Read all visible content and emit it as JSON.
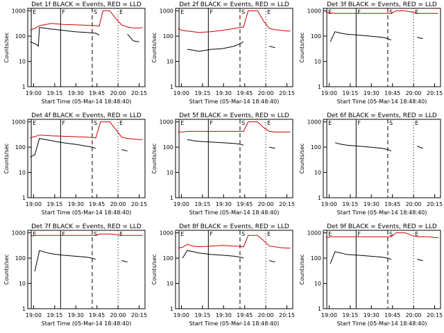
{
  "chart_data": [
    {
      "type": "line",
      "title": "Det 1f BLACK = Events, RED = LLD",
      "xlabel": "Start Time (05-Mar-14 18:48:40)",
      "ylabel": "Counts/sec",
      "xticks": [
        "19:00",
        "19:15",
        "19:30",
        "19:45",
        "20:00",
        "20:15"
      ],
      "yticks": [
        "1",
        "10",
        "100",
        "1000"
      ],
      "markers": [
        {
          "label": "E",
          "x": 0.03
        },
        {
          "label": "F",
          "x": 0.28
        },
        {
          "label": "S",
          "x": 0.55
        },
        {
          "label": "E",
          "x": 0.77
        }
      ],
      "red_baseline": 150,
      "x": [
        0.02,
        0.04,
        0.06,
        0.08,
        0.09,
        0.1,
        0.2,
        0.3,
        0.4,
        0.5,
        0.58,
        0.61,
        0.64,
        0.66,
        0.7,
        0.75,
        0.8,
        0.85,
        0.9,
        0.95,
        0.98
      ],
      "series": [
        {
          "name": "Events",
          "color": "#000000",
          "values": [
            60,
            55,
            50,
            45,
            40,
            220,
            190,
            170,
            150,
            140,
            130,
            110,
            null,
            null,
            null,
            null,
            null,
            120,
            65,
            60,
            null
          ]
        },
        {
          "name": "LLD",
          "color": "#cc0000",
          "values": [
            170,
            190,
            200,
            230,
            240,
            260,
            320,
            290,
            280,
            270,
            260,
            250,
            1000,
            1000,
            1000,
            500,
            280,
            230,
            210,
            210,
            220
          ]
        }
      ]
    },
    {
      "type": "line",
      "title": "Det 2f BLACK = Events, RED = LLD",
      "xlabel": "Start Time (05-Mar-14 18:48:40)",
      "ylabel": "Counts/sec",
      "xticks": [
        "19:00",
        "19:15",
        "19:30",
        "19:45",
        "20:00",
        "20:15"
      ],
      "yticks": [
        "1",
        "10",
        "100",
        "1000"
      ],
      "markers": [
        {
          "label": "E",
          "x": 0.03
        },
        {
          "label": "F",
          "x": 0.28
        },
        {
          "label": "S",
          "x": 0.55
        },
        {
          "label": "E",
          "x": 0.77
        }
      ],
      "red_baseline": 180,
      "x": [
        0.02,
        0.04,
        0.06,
        0.1,
        0.15,
        0.2,
        0.3,
        0.4,
        0.5,
        0.55,
        0.58,
        0.62,
        0.66,
        0.7,
        0.75,
        0.8,
        0.85,
        0.9,
        0.95,
        0.98
      ],
      "series": [
        {
          "name": "Events",
          "color": "#000000",
          "values": [
            null,
            null,
            null,
            30,
            28,
            25,
            30,
            32,
            40,
            50,
            60,
            null,
            null,
            null,
            null,
            40,
            35,
            null,
            null,
            null
          ]
        },
        {
          "name": "LLD",
          "color": "#cc0000",
          "values": [
            200,
            180,
            170,
            160,
            150,
            140,
            150,
            170,
            200,
            220,
            230,
            1000,
            1000,
            1000,
            400,
            200,
            180,
            170,
            160,
            160
          ]
        }
      ]
    },
    {
      "type": "line",
      "title": "Det 3f BLACK = Events, RED = LLD",
      "xlabel": "Start Time (05-Mar-14 18:48:40)",
      "ylabel": "Counts/sec",
      "xticks": [
        "19:00",
        "19:15",
        "19:30",
        "19:45",
        "20:00",
        "20:15"
      ],
      "yticks": [
        "1",
        "10",
        "100",
        "1000"
      ],
      "markers": [
        {
          "label": "E",
          "x": 0.03
        },
        {
          "label": "F",
          "x": 0.28
        },
        {
          "label": "S",
          "x": 0.55
        },
        {
          "label": "E",
          "x": 0.77
        }
      ],
      "red_baseline": 800,
      "x": [
        0.02,
        0.04,
        0.06,
        0.1,
        0.15,
        0.2,
        0.3,
        0.4,
        0.5,
        0.55,
        0.58,
        0.62,
        0.66,
        0.7,
        0.75,
        0.8,
        0.85,
        0.9,
        0.95,
        0.98
      ],
      "series": [
        {
          "name": "Events",
          "color": "#000000",
          "values": [
            null,
            null,
            60,
            150,
            130,
            120,
            110,
            100,
            90,
            80,
            70,
            null,
            null,
            null,
            null,
            90,
            80,
            null,
            null,
            null
          ]
        },
        {
          "name": "LLD",
          "color": "#cc0000",
          "values": [
            900,
            850,
            820,
            800,
            800,
            800,
            800,
            800,
            800,
            800,
            800,
            1000,
            1000,
            1000,
            900,
            800,
            800,
            800,
            800,
            800
          ]
        }
      ]
    },
    {
      "type": "line",
      "title": "Det 4f BLACK = Events, RED = LLD",
      "xlabel": "Start Time (05-Mar-14 18:48:40)",
      "ylabel": "Counts/sec",
      "xticks": [
        "19:00",
        "19:15",
        "19:30",
        "19:45",
        "20:00",
        "20:15"
      ],
      "yticks": [
        "1",
        "10",
        "100",
        "1000"
      ],
      "markers": [
        {
          "label": "E",
          "x": 0.03
        },
        {
          "label": "F",
          "x": 0.28
        },
        {
          "label": "S",
          "x": 0.55
        },
        {
          "label": "E",
          "x": 0.77
        }
      ],
      "red_baseline": 200,
      "x": [
        0.02,
        0.04,
        0.06,
        0.1,
        0.15,
        0.2,
        0.3,
        0.4,
        0.5,
        0.55,
        0.58,
        0.62,
        0.66,
        0.7,
        0.75,
        0.8,
        0.85,
        0.9,
        0.95,
        0.98
      ],
      "series": [
        {
          "name": "Events",
          "color": "#000000",
          "values": [
            40,
            45,
            50,
            220,
            200,
            180,
            150,
            130,
            110,
            100,
            90,
            null,
            null,
            null,
            null,
            80,
            70,
            null,
            null,
            null
          ]
        },
        {
          "name": "LLD",
          "color": "#cc0000",
          "values": [
            230,
            250,
            260,
            300,
            290,
            280,
            270,
            260,
            250,
            240,
            230,
            1000,
            1000,
            1000,
            500,
            250,
            220,
            210,
            200,
            200
          ]
        }
      ]
    },
    {
      "type": "line",
      "title": "Det 5f BLACK = Events, RED = LLD",
      "xlabel": "Start Time (05-Mar-14 18:48:40)",
      "ylabel": "Counts/sec",
      "xticks": [
        "19:00",
        "19:15",
        "19:30",
        "19:45",
        "20:00",
        "20:15"
      ],
      "yticks": [
        "1",
        "10",
        "100",
        "1000"
      ],
      "markers": [
        {
          "label": "E",
          "x": 0.03
        },
        {
          "label": "F",
          "x": 0.28
        },
        {
          "label": "S",
          "x": 0.55
        },
        {
          "label": "E",
          "x": 0.77
        }
      ],
      "red_baseline": 400,
      "x": [
        0.02,
        0.04,
        0.06,
        0.1,
        0.15,
        0.2,
        0.3,
        0.4,
        0.5,
        0.55,
        0.58,
        0.62,
        0.66,
        0.7,
        0.75,
        0.8,
        0.85,
        0.9,
        0.95,
        0.98
      ],
      "series": [
        {
          "name": "Events",
          "color": "#000000",
          "values": [
            null,
            null,
            null,
            200,
            180,
            170,
            160,
            150,
            140,
            130,
            120,
            null,
            null,
            null,
            null,
            100,
            90,
            null,
            null,
            null
          ]
        },
        {
          "name": "LLD",
          "color": "#cc0000",
          "values": [
            400,
            400,
            400,
            420,
            420,
            420,
            420,
            420,
            420,
            420,
            420,
            1000,
            1000,
            1000,
            600,
            420,
            400,
            400,
            400,
            400
          ]
        }
      ]
    },
    {
      "type": "line",
      "title": "Det 6f BLACK = Events, RED = LLD",
      "xlabel": "Start Time (05-Mar-14 18:48:40)",
      "ylabel": "Counts/sec",
      "xticks": [
        "19:00",
        "19:15",
        "19:30",
        "19:45",
        "20:00",
        "20:15"
      ],
      "yticks": [
        "1",
        "10",
        "100",
        "1000"
      ],
      "markers": [
        {
          "label": "E",
          "x": 0.03
        },
        {
          "label": "F",
          "x": 0.28
        },
        {
          "label": "S",
          "x": 0.55
        },
        {
          "label": "E",
          "x": 0.77
        }
      ],
      "red_baseline": 1000,
      "x": [
        0.02,
        0.04,
        0.06,
        0.1,
        0.15,
        0.2,
        0.3,
        0.4,
        0.5,
        0.55,
        0.58,
        0.62,
        0.66,
        0.7,
        0.75,
        0.8,
        0.85,
        0.9,
        0.95,
        0.98
      ],
      "series": [
        {
          "name": "Events",
          "color": "#000000",
          "values": [
            null,
            null,
            null,
            150,
            130,
            120,
            110,
            100,
            90,
            80,
            70,
            null,
            null,
            null,
            null,
            110,
            90,
            null,
            null,
            null
          ]
        },
        {
          "name": "LLD",
          "color": "#cc0000",
          "values": [
            null,
            null,
            null,
            null,
            null,
            null,
            null,
            null,
            null,
            null,
            null,
            null,
            null,
            null,
            null,
            null,
            null,
            null,
            null,
            null
          ]
        }
      ]
    },
    {
      "type": "line",
      "title": "Det 7f BLACK = Events, RED = LLD",
      "xlabel": "Start Time (05-Mar-14 18:48:40)",
      "ylabel": "Counts/sec",
      "xticks": [
        "19:00",
        "19:15",
        "19:30",
        "19:45",
        "20:00",
        "20:15"
      ],
      "yticks": [
        "1",
        "10",
        "100",
        "1000"
      ],
      "markers": [
        {
          "label": "E",
          "x": 0.03
        },
        {
          "label": "F",
          "x": 0.28
        },
        {
          "label": "S",
          "x": 0.55
        },
        {
          "label": "E",
          "x": 0.77
        }
      ],
      "red_baseline": 800,
      "x": [
        0.02,
        0.04,
        0.06,
        0.1,
        0.15,
        0.2,
        0.3,
        0.4,
        0.5,
        0.55,
        0.58,
        0.62,
        0.66,
        0.7,
        0.75,
        0.8,
        0.85,
        0.9,
        0.95,
        0.98
      ],
      "series": [
        {
          "name": "Events",
          "color": "#000000",
          "values": [
            null,
            null,
            30,
            200,
            170,
            150,
            130,
            120,
            110,
            100,
            90,
            null,
            null,
            null,
            null,
            80,
            70,
            null,
            null,
            null
          ]
        },
        {
          "name": "LLD",
          "color": "#cc0000",
          "values": [
            800,
            750,
            800,
            800,
            800,
            800,
            800,
            800,
            800,
            800,
            800,
            900,
            900,
            900,
            850,
            800,
            800,
            800,
            800,
            800
          ]
        }
      ]
    },
    {
      "type": "line",
      "title": "Det 8f BLACK = Events, RED = LLD",
      "xlabel": "Start Time (05-Mar-14 18:48:40)",
      "ylabel": "Counts/sec",
      "xticks": [
        "19:00",
        "19:15",
        "19:30",
        "19:45",
        "20:00",
        "20:15"
      ],
      "yticks": [
        "1",
        "10",
        "100",
        "1000"
      ],
      "markers": [
        {
          "label": "E",
          "x": 0.03
        },
        {
          "label": "F",
          "x": 0.28
        },
        {
          "label": "S",
          "x": 0.55
        },
        {
          "label": "E",
          "x": 0.77
        }
      ],
      "red_baseline": 250,
      "x": [
        0.02,
        0.04,
        0.06,
        0.1,
        0.15,
        0.2,
        0.3,
        0.4,
        0.5,
        0.55,
        0.58,
        0.62,
        0.66,
        0.7,
        0.75,
        0.8,
        0.85,
        0.9,
        0.95,
        0.98
      ],
      "series": [
        {
          "name": "Events",
          "color": "#000000",
          "values": [
            null,
            null,
            100,
            200,
            180,
            160,
            140,
            130,
            120,
            110,
            100,
            null,
            null,
            null,
            null,
            80,
            70,
            null,
            null,
            null
          ]
        },
        {
          "name": "LLD",
          "color": "#cc0000",
          "values": [
            250,
            260,
            270,
            350,
            300,
            280,
            300,
            320,
            300,
            290,
            280,
            800,
            800,
            800,
            500,
            300,
            280,
            260,
            250,
            250
          ]
        }
      ]
    },
    {
      "type": "line",
      "title": "Det 9f BLACK = Events, RED = LLD",
      "xlabel": "Start Time (05-Mar-14 18:48:40)",
      "ylabel": "Counts/sec",
      "xticks": [
        "19:00",
        "19:15",
        "19:30",
        "19:45",
        "20:00",
        "20:15"
      ],
      "yticks": [
        "1",
        "10",
        "100",
        "1000"
      ],
      "markers": [
        {
          "label": "E",
          "x": 0.03
        },
        {
          "label": "F",
          "x": 0.28
        },
        {
          "label": "S",
          "x": 0.55
        },
        {
          "label": "E",
          "x": 0.77
        }
      ],
      "red_baseline": 700,
      "x": [
        0.02,
        0.04,
        0.06,
        0.1,
        0.15,
        0.2,
        0.3,
        0.4,
        0.5,
        0.55,
        0.58,
        0.62,
        0.66,
        0.7,
        0.75,
        0.8,
        0.85,
        0.9,
        0.95,
        0.98
      ],
      "series": [
        {
          "name": "Events",
          "color": "#000000",
          "values": [
            null,
            null,
            60,
            180,
            160,
            140,
            130,
            120,
            110,
            100,
            90,
            null,
            null,
            null,
            null,
            90,
            80,
            null,
            null,
            null
          ]
        },
        {
          "name": "LLD",
          "color": "#cc0000",
          "values": [
            700,
            650,
            700,
            700,
            700,
            700,
            700,
            700,
            700,
            700,
            700,
            1000,
            1000,
            1000,
            800,
            700,
            700,
            700,
            650,
            650
          ]
        }
      ]
    }
  ]
}
